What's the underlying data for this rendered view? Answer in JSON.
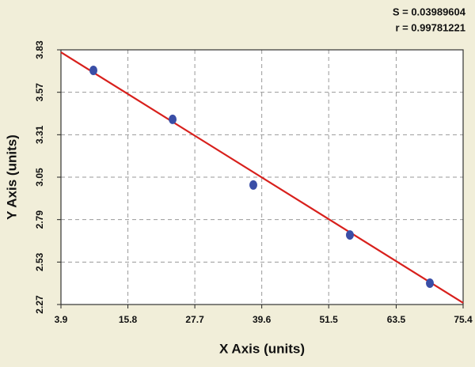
{
  "chart_data": {
    "type": "scatter",
    "annotations": [
      "S = 0.03989604",
      "r = 0.99781221"
    ],
    "x_label": "X Axis (units)",
    "y_label": "Y Axis (units)",
    "xlim": [
      3.9,
      75.4
    ],
    "xticks": [
      3.9,
      15.8,
      27.7,
      39.6,
      51.5,
      63.5,
      75.4
    ],
    "ylim": [
      2.27,
      3.83
    ],
    "yticks": [
      2.27,
      2.53,
      2.79,
      3.05,
      3.31,
      3.57,
      3.83
    ],
    "grid": true,
    "points": {
      "color": "#3a4ea6",
      "x": [
        9.67,
        23.75,
        38.1,
        55.27,
        69.49
      ],
      "y": [
        3.704,
        3.404,
        3.002,
        2.696,
        2.401
      ]
    },
    "fit_line": {
      "color": "#d8201c",
      "x": [
        3.9,
        75.4
      ],
      "y": [
        3.815,
        2.28
      ]
    }
  }
}
